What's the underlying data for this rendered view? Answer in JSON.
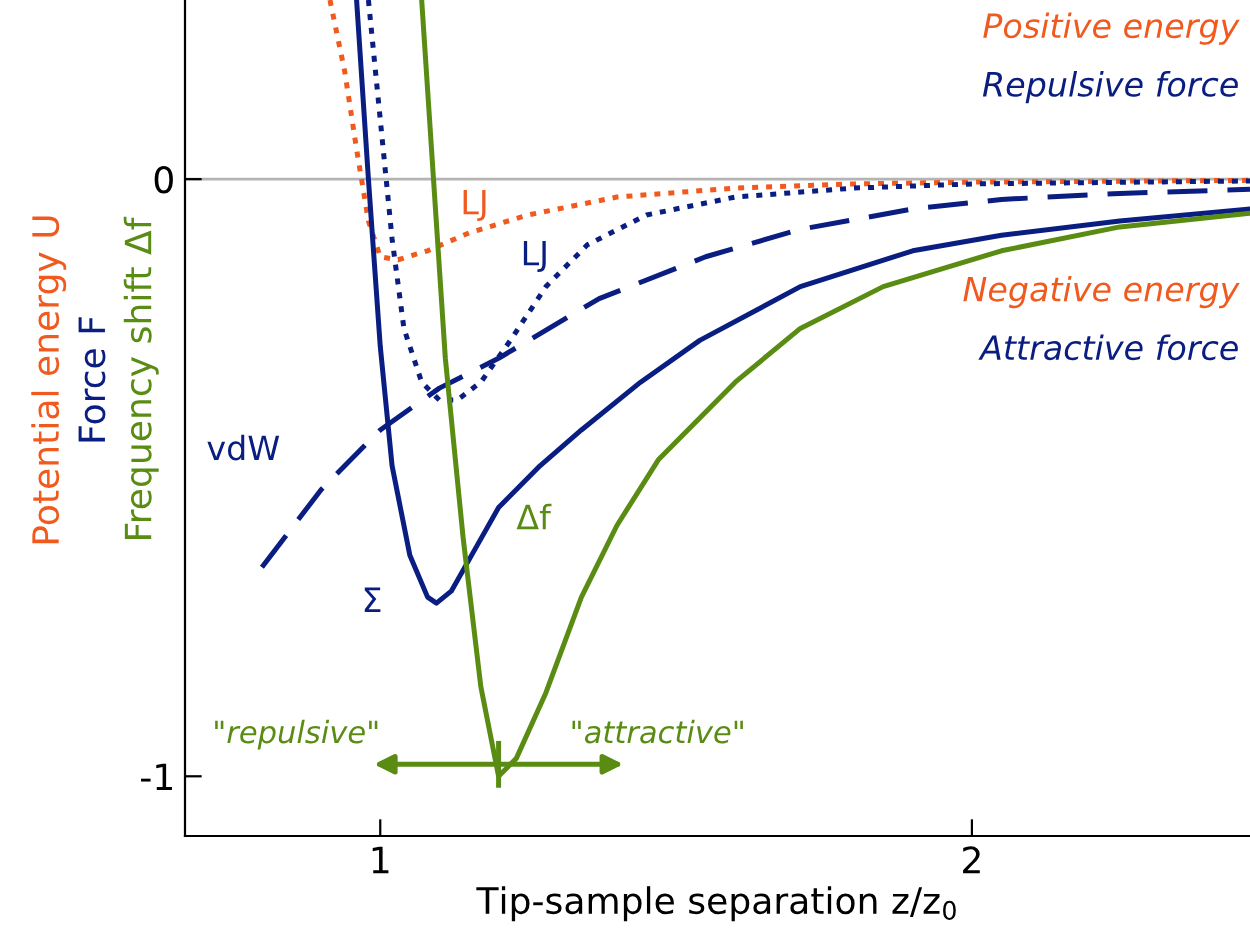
{
  "chart_data": {
    "type": "line",
    "xlabel": "Tip-sample separation z/z$_{0}$",
    "ylabel": "Potential energy U\nForce F\nFrequency shift Δf",
    "xlim": [
      0.67,
      2.47
    ],
    "ylim": [
      -1.1,
      0.3
    ],
    "xticks": [
      1,
      2
    ],
    "yticks": [
      0,
      -1
    ],
    "ref_lines": [
      {
        "axis": "y",
        "value": 0,
        "color": "#b4b4b4",
        "line_style": "solid"
      }
    ],
    "series": [
      {
        "name": "LJ",
        "color": "#f05a1e",
        "line_style": "dotted",
        "x": [
          0.915,
          0.94,
          0.96,
          0.98,
          1.0,
          1.03,
          1.08,
          1.15,
          1.25,
          1.4,
          1.6,
          1.8,
          2.0,
          2.47
        ],
        "values": [
          0.3,
          0.18,
          0.05,
          -0.07,
          -0.13,
          -0.135,
          -0.12,
          -0.09,
          -0.06,
          -0.03,
          -0.015,
          -0.008,
          -0.005,
          -0.002
        ]
      },
      {
        "name": "LJ",
        "color": "#0a1e82",
        "line_style": "dotted",
        "x": [
          0.98,
          1.0,
          1.02,
          1.04,
          1.07,
          1.1,
          1.13,
          1.17,
          1.22,
          1.28,
          1.35,
          1.45,
          1.6,
          1.8,
          2.0,
          2.47
        ],
        "values": [
          0.3,
          0.1,
          -0.1,
          -0.25,
          -0.34,
          -0.37,
          -0.37,
          -0.34,
          -0.27,
          -0.18,
          -0.11,
          -0.06,
          -0.03,
          -0.015,
          -0.008,
          -0.003
        ]
      },
      {
        "name": "vdW",
        "color": "#0a1e82",
        "line_style": "dashed",
        "x": [
          0.8,
          0.9,
          1.0,
          1.1,
          1.2,
          1.37,
          1.55,
          1.71,
          1.9,
          2.05,
          2.25,
          2.47
        ],
        "values": [
          -0.65,
          -0.52,
          -0.42,
          -0.35,
          -0.3,
          -0.2,
          -0.13,
          -0.084,
          -0.05,
          -0.034,
          -0.024,
          -0.017
        ]
      },
      {
        "name": "Σ",
        "color": "#0a1e82",
        "line_style": "solid",
        "x": [
          0.96,
          0.98,
          1.0,
          1.02,
          1.05,
          1.08,
          1.095,
          1.12,
          1.16,
          1.2,
          1.27,
          1.34,
          1.44,
          1.54,
          1.71,
          1.9,
          2.05,
          2.25,
          2.47
        ],
        "values": [
          0.3,
          0.0,
          -0.28,
          -0.48,
          -0.63,
          -0.7,
          -0.71,
          -0.69,
          -0.62,
          -0.55,
          -0.48,
          -0.42,
          -0.34,
          -0.27,
          -0.18,
          -0.12,
          -0.094,
          -0.07,
          -0.05
        ]
      },
      {
        "name": "Δf",
        "color": "#5a8c14",
        "line_style": "solid",
        "x": [
          1.07,
          1.09,
          1.11,
          1.14,
          1.17,
          1.2,
          1.23,
          1.28,
          1.34,
          1.4,
          1.47,
          1.6,
          1.71,
          1.85,
          2.05,
          2.25,
          2.47
        ],
        "values": [
          0.3,
          0.0,
          -0.3,
          -0.6,
          -0.85,
          -1.0,
          -0.97,
          -0.86,
          -0.7,
          -0.58,
          -0.47,
          -0.34,
          -0.25,
          -0.18,
          -0.12,
          -0.08,
          -0.057
        ]
      }
    ],
    "annotations": [
      "Positive energy",
      "Repulsive force",
      "Negative energy",
      "Attractive force",
      "\"repulsive\"",
      "\"attractive\""
    ],
    "legend": false,
    "grid": false
  }
}
